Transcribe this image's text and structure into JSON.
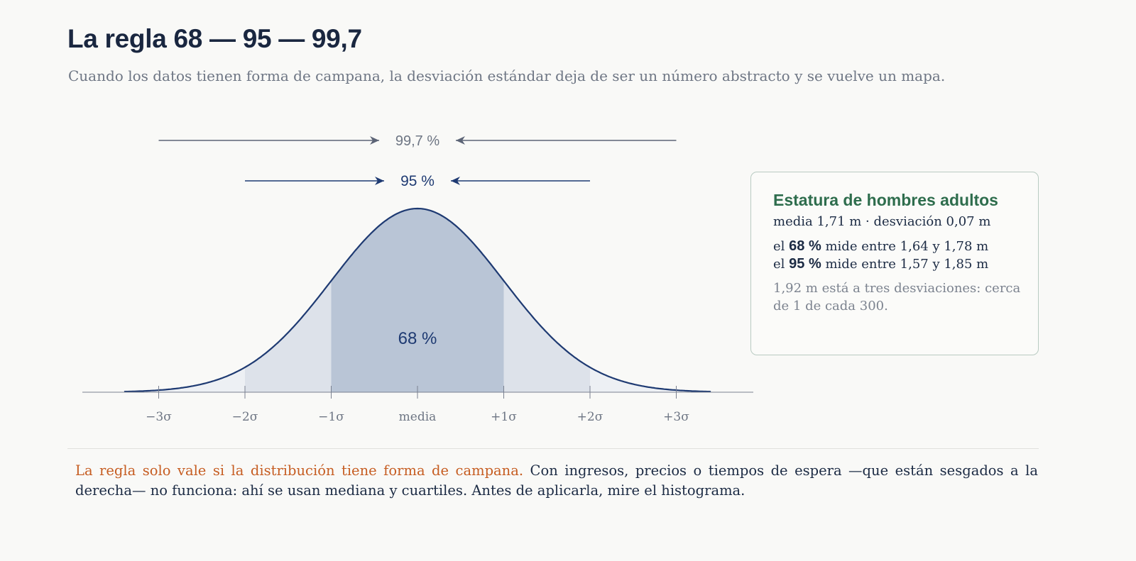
{
  "title": "La regla 68 — 95 — 99,7",
  "subtitle": "Cuando los datos tienen forma de campana, la desviación estándar deja de ser un número abstracto y se vuelve un mapa.",
  "diagram": {
    "bands": [
      {
        "label": "68 %",
        "lower_sigma": -1,
        "upper_sigma": 1,
        "color": "#b9c5d6"
      },
      {
        "label": "95 %",
        "lower_sigma": -2,
        "upper_sigma": 2,
        "color": "#dde2ea"
      },
      {
        "label": "99,7 %",
        "lower_sigma": -3,
        "upper_sigma": 3,
        "color": "#edf0f4"
      }
    ],
    "tick_labels": [
      "−3σ",
      "−2σ",
      "−1σ",
      "media",
      "+1σ",
      "+2σ",
      "+3σ"
    ],
    "colors": {
      "curve": "#1e3a72",
      "axis": "#7a8190",
      "arrow_outer": "#5c6476",
      "label_outer": "#6e7684",
      "arrow_inner": "#1e3a72"
    }
  },
  "card": {
    "title": "Estatura de hombres adultos",
    "stats": "media 1,71 m · desviación 0,07 m",
    "rows": [
      {
        "prefix": "el",
        "pct": "68 %",
        "text": "mide entre 1,64 y 1,78 m"
      },
      {
        "prefix": "el",
        "pct": "95 %",
        "text": "mide entre 1,57 y 1,85 m"
      }
    ],
    "note": "1,92 m está a tres desviaciones: cerca de 1 de cada 300.",
    "colors": {
      "title": "#2e6d4d",
      "border": "#b9cbc2"
    }
  },
  "footnote": {
    "highlight": "La regla solo vale si la distribución tiene forma de campana.",
    "text": " Con ingresos, precios o tiempos de espera —que están sesgados a la derecha— no funciona: ahí se usan mediana y cuartiles. Antes de aplicarla, mire el histograma.",
    "highlight_color": "#c65d22"
  }
}
